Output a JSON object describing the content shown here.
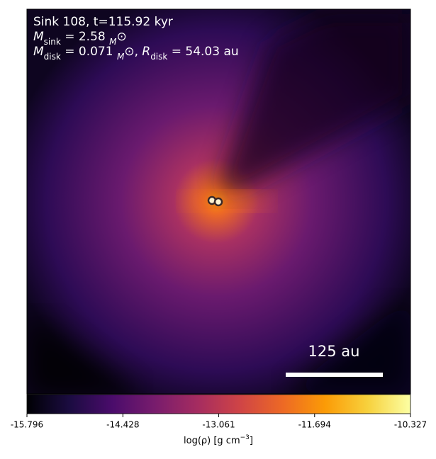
{
  "chart_data": {
    "type": "image",
    "annotations": [
      [
        "Sink 108, t=115.92 kyr"
      ],
      [
        "M",
        "sink",
        " = 2.58 ",
        "M",
        "⊙"
      ],
      [
        "M",
        "disk",
        " = 0.071 ",
        "M",
        "⊙",
        ", ",
        "R",
        "disk",
        " = 54.03 au"
      ]
    ],
    "scale_bar_label": "125 au",
    "colorbar": {
      "label": [
        "log(ρ) [g cm",
        "−3",
        "]"
      ],
      "lim": [
        -15.796,
        -10.327
      ],
      "ticks": [
        -15.796,
        -14.428,
        -13.061,
        -11.694,
        -10.327
      ],
      "colormap": [
        "#000004",
        "#1b0c41",
        "#4a0c6b",
        "#781c6d",
        "#a52c60",
        "#cf4446",
        "#ed6925",
        "#fb9b06",
        "#f7d13d",
        "#fcffa4"
      ]
    }
  }
}
